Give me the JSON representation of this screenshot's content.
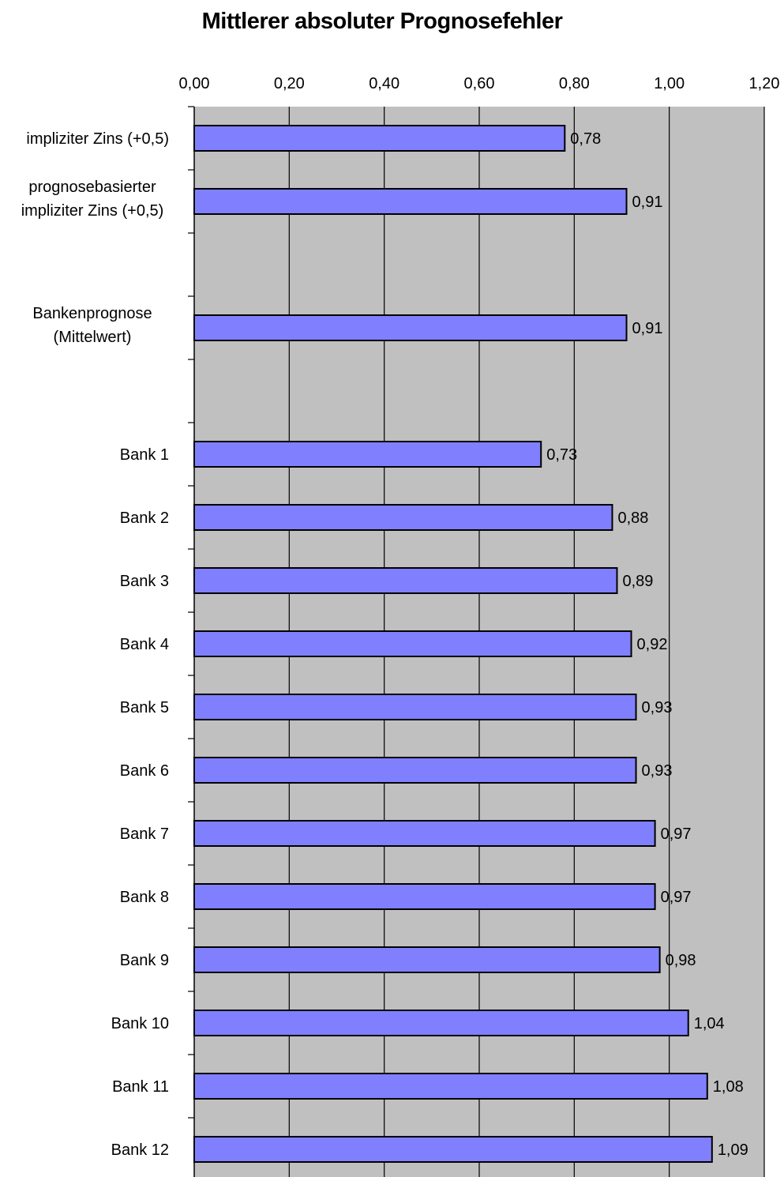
{
  "chart_data": {
    "type": "bar",
    "orientation": "horizontal",
    "title": "Mittlerer absoluter Prognosefehler",
    "xlim": [
      0,
      1.2
    ],
    "x_ticks": [
      "0,00",
      "0,20",
      "0,40",
      "0,60",
      "0,80",
      "1,00",
      "1,20"
    ],
    "grid": true,
    "colors": {
      "bar": "#8080ff",
      "plot_background": "#c0c0c0"
    },
    "categories": [
      [
        "impliziter Zins (+0,5)"
      ],
      [
        "prognosebasierter",
        "impliziter Zins (+0,5)"
      ],
      [
        ""
      ],
      [
        "Bankenprognose",
        "(Mittelwert)"
      ],
      [
        ""
      ],
      [
        "Bank 1"
      ],
      [
        "Bank 2"
      ],
      [
        "Bank 3"
      ],
      [
        "Bank 4"
      ],
      [
        "Bank 5"
      ],
      [
        "Bank 6"
      ],
      [
        "Bank 7"
      ],
      [
        "Bank 8"
      ],
      [
        "Bank 9"
      ],
      [
        "Bank 10"
      ],
      [
        "Bank 11"
      ],
      [
        "Bank 12"
      ]
    ],
    "values": [
      0.78,
      0.91,
      null,
      0.91,
      null,
      0.73,
      0.88,
      0.89,
      0.92,
      0.93,
      0.93,
      0.97,
      0.97,
      0.98,
      1.04,
      1.08,
      1.09
    ],
    "data_labels": [
      "0,78",
      "0,91",
      "",
      "0,91",
      "",
      "0,73",
      "0,88",
      "0,89",
      "0,92",
      "0,93",
      "0,93",
      "0,97",
      "0,97",
      "0,98",
      "1,04",
      "1,08",
      "1,09"
    ]
  }
}
